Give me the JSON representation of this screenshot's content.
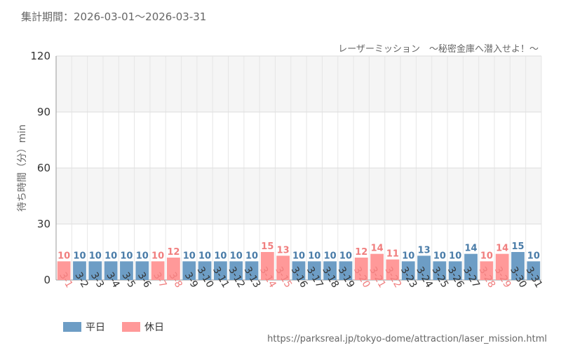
{
  "header": {
    "period": "集計期間：2026-03-01～2026-03-31",
    "source_url": "https://parksreal.jp/tokyo-dome/attraction/laser_mission.html"
  },
  "colors": {
    "weekday": "#6d9dc5",
    "holiday": "#ff9999",
    "weekday_text": "#4a7ca8",
    "holiday_text": "#f07e7e"
  },
  "chart_data": {
    "type": "bar",
    "title": "",
    "subtitle": "レーザーミッション　～秘密金庫へ潜入せよ！～",
    "xlabel": "",
    "ylabel": "待ち時間（分）min",
    "ylim": [
      0,
      120
    ],
    "yticks": [
      0,
      30,
      60,
      90,
      120
    ],
    "grid": true,
    "legend_position": "bottom-left",
    "legend": [
      {
        "key": "weekday",
        "label": "平日"
      },
      {
        "key": "holiday",
        "label": "休日"
      }
    ],
    "categories": [
      "3-1",
      "3-2",
      "3-3",
      "3-4",
      "3-5",
      "3-6",
      "3-7",
      "3-8",
      "3-9",
      "3-10",
      "3-11",
      "3-12",
      "3-13",
      "3-14",
      "3-15",
      "3-16",
      "3-17",
      "3-18",
      "3-19",
      "3-20",
      "3-21",
      "3-22",
      "3-23",
      "3-24",
      "3-25",
      "3-26",
      "3-27",
      "3-28",
      "3-29",
      "3-30",
      "3-31"
    ],
    "values": [
      10,
      10,
      10,
      10,
      10,
      10,
      10,
      12,
      10,
      10,
      10,
      10,
      10,
      15,
      13,
      10,
      10,
      10,
      10,
      12,
      14,
      11,
      10,
      13,
      10,
      10,
      14,
      10,
      14,
      15,
      10
    ],
    "day_type": [
      "holiday",
      "weekday",
      "weekday",
      "weekday",
      "weekday",
      "weekday",
      "holiday",
      "holiday",
      "weekday",
      "weekday",
      "weekday",
      "weekday",
      "weekday",
      "holiday",
      "holiday",
      "weekday",
      "weekday",
      "weekday",
      "weekday",
      "holiday",
      "holiday",
      "holiday",
      "weekday",
      "weekday",
      "weekday",
      "weekday",
      "weekday",
      "holiday",
      "holiday",
      "weekday",
      "weekday"
    ]
  }
}
